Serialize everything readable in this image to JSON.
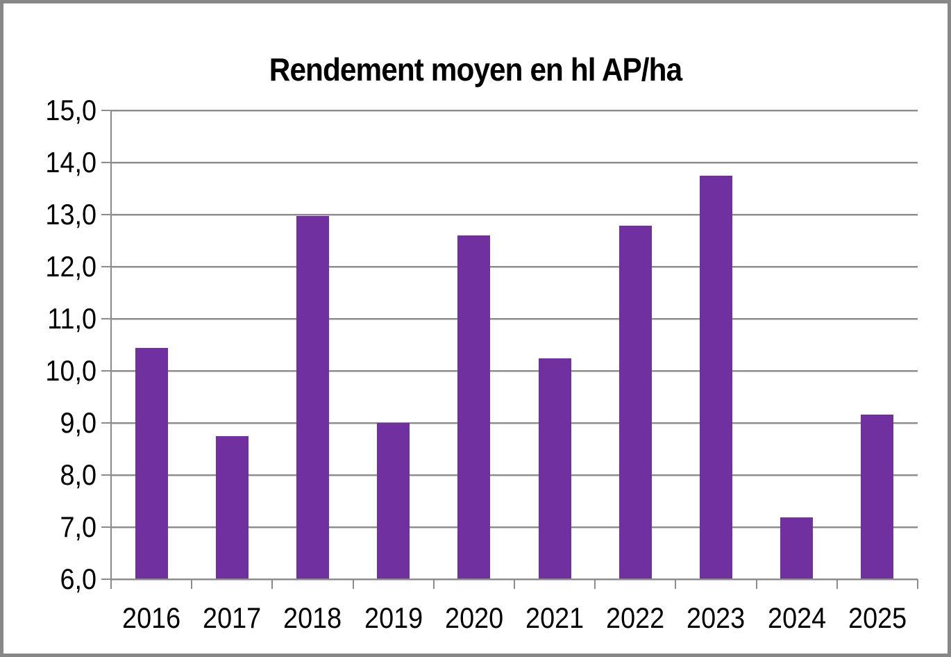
{
  "frame": {
    "border_color": "#878787",
    "background": "#ffffff"
  },
  "chart_data": {
    "type": "bar",
    "title": "Rendement moyen en hl AP/ha",
    "categories": [
      "2016",
      "2017",
      "2018",
      "2019",
      "2020",
      "2021",
      "2022",
      "2023",
      "2024",
      "2025"
    ],
    "values": [
      10.44,
      8.75,
      12.97,
      9.0,
      12.6,
      10.24,
      12.79,
      13.75,
      7.19,
      9.16
    ],
    "xlabel": "",
    "ylabel": "",
    "ylim": [
      6.0,
      15.0
    ],
    "ytick_step": 1.0,
    "ytick_labels": [
      "6,0",
      "7,0",
      "8,0",
      "9,0",
      "10,0",
      "11,0",
      "12,0",
      "13,0",
      "14,0",
      "15,0"
    ],
    "decimal_separator": ",",
    "grid": true,
    "legend": "none",
    "bar_color": "#7030a0",
    "grid_color": "#8c8c8c",
    "axis_color": "#8c8c8c",
    "text_color": "#000000"
  }
}
